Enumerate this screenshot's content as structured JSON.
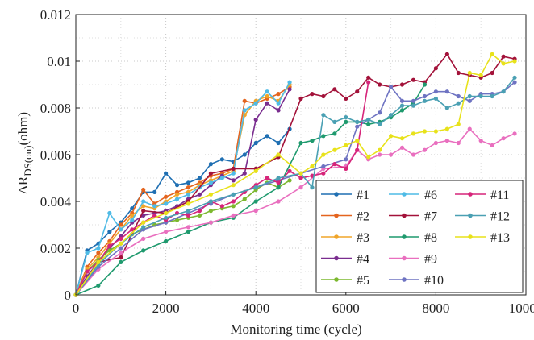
{
  "chart_data": {
    "type": "line",
    "xlabel": "Monitoring time (cycle)",
    "ylabel": {
      "main": "ΔR",
      "sub": "DS(on)",
      "unit": "(ohm)"
    },
    "xlim": [
      0,
      10000
    ],
    "ylim": [
      0,
      0.012
    ],
    "xticks": [
      "0",
      "2000",
      "4000",
      "6000",
      "8000",
      "10000"
    ],
    "yticks": [
      "0",
      "0.002",
      "0.004",
      "0.006",
      "0.008",
      "0.01",
      "0.012"
    ],
    "grid": true,
    "legend_position": "bottom-right",
    "series": [
      {
        "name": "#1",
        "color": "#1f6fb2",
        "x": [
          0,
          250,
          500,
          750,
          1000,
          1250,
          1500,
          1750,
          2000,
          2250,
          2500,
          2750,
          3000,
          3250,
          3500,
          3750,
          4000,
          4250,
          4500,
          4750
        ],
        "y": [
          0,
          0.0019,
          0.0022,
          0.0027,
          0.0031,
          0.0037,
          0.0044,
          0.0044,
          0.0052,
          0.0047,
          0.0048,
          0.005,
          0.0056,
          0.0058,
          0.0057,
          0.006,
          0.0065,
          0.0068,
          0.0065,
          0.0071
        ]
      },
      {
        "name": "#2",
        "color": "#e4641e",
        "x": [
          0,
          250,
          500,
          750,
          1000,
          1250,
          1500,
          1750,
          2000,
          2250,
          2500,
          2750,
          3000,
          3250,
          3500,
          3750,
          4000,
          4250,
          4500,
          4750
        ],
        "y": [
          0,
          0.0012,
          0.0018,
          0.0023,
          0.003,
          0.0035,
          0.0045,
          0.0039,
          0.0042,
          0.0044,
          0.0046,
          0.0048,
          0.0051,
          0.0052,
          0.0054,
          0.0083,
          0.0082,
          0.0084,
          0.0086,
          0.0089
        ]
      },
      {
        "name": "#3",
        "color": "#f0a52a",
        "x": [
          0,
          250,
          500,
          750,
          1000,
          1250,
          1500,
          1750,
          2000,
          2250,
          2500,
          2750,
          3000,
          3250,
          3500,
          3750,
          4000,
          4250,
          4500,
          4750
        ],
        "y": [
          0,
          0.0011,
          0.0016,
          0.0022,
          0.0028,
          0.0034,
          0.0038,
          0.0037,
          0.004,
          0.0043,
          0.0044,
          0.0047,
          0.0049,
          0.0051,
          0.0053,
          0.0077,
          0.0083,
          0.0085,
          0.0083,
          0.009
        ]
      },
      {
        "name": "#4",
        "color": "#7a2d8f",
        "x": [
          0,
          250,
          500,
          750,
          1000,
          1250,
          1500,
          1750,
          2000,
          2250,
          2500,
          2750,
          3000,
          3250,
          3500,
          3750,
          4000,
          4250,
          4500,
          4750
        ],
        "y": [
          0,
          0.0008,
          0.0014,
          0.002,
          0.0025,
          0.0031,
          0.0034,
          0.0035,
          0.0036,
          0.0038,
          0.0041,
          0.0043,
          0.0047,
          0.0051,
          0.0049,
          0.0052,
          0.0075,
          0.0082,
          0.0079,
          0.0088
        ]
      },
      {
        "name": "#5",
        "color": "#7cb82f",
        "x": [
          0,
          250,
          500,
          750,
          1000,
          1250,
          1500,
          1750,
          2000,
          2250,
          2500,
          2750,
          3000,
          3250,
          3500,
          3750,
          4000,
          4250,
          4500,
          4750
        ],
        "y": [
          0,
          0.001,
          0.0015,
          0.0019,
          0.0022,
          0.0026,
          0.0028,
          0.003,
          0.0031,
          0.0032,
          0.0033,
          0.0034,
          0.0036,
          0.0037,
          0.0038,
          0.0041,
          0.0045,
          0.0048,
          0.0046,
          0.0049
        ]
      },
      {
        "name": "#6",
        "color": "#4fbbe6",
        "x": [
          0,
          250,
          500,
          750,
          1000,
          1250,
          1500,
          1750,
          2000,
          2250,
          2500,
          2750,
          3000,
          3250,
          3500,
          3750,
          4000,
          4250,
          4500,
          4750
        ],
        "y": [
          0,
          0.0018,
          0.002,
          0.0035,
          0.0028,
          0.0032,
          0.004,
          0.0038,
          0.0039,
          0.0041,
          0.0043,
          0.0046,
          0.0048,
          0.005,
          0.0052,
          0.0079,
          0.0082,
          0.0087,
          0.0082,
          0.0091
        ]
      },
      {
        "name": "#7",
        "color": "#a3123a",
        "x": [
          0,
          500,
          1000,
          1500,
          2000,
          2500,
          3000,
          3500,
          4000,
          4500,
          5000,
          5250,
          5500,
          5750,
          6000,
          6250,
          6500,
          6750,
          7000,
          7250,
          7500,
          7750,
          8000,
          8250,
          8500,
          8750,
          9000,
          9250,
          9500,
          9750
        ],
        "y": [
          0,
          0.0014,
          0.0016,
          0.0036,
          0.0035,
          0.004,
          0.0052,
          0.0054,
          0.0054,
          0.0059,
          0.0084,
          0.0086,
          0.0085,
          0.0088,
          0.0084,
          0.0087,
          0.0093,
          0.009,
          0.0089,
          0.009,
          0.0092,
          0.0091,
          0.0097,
          0.0103,
          0.0095,
          0.0094,
          0.0093,
          0.0095,
          0.0102,
          0.0101
        ]
      },
      {
        "name": "#8",
        "color": "#1f9a6e",
        "x": [
          0,
          500,
          1000,
          1500,
          2000,
          2500,
          3000,
          3500,
          4000,
          4500,
          5000,
          5250,
          5500,
          5750,
          6000,
          6250,
          6500,
          6750,
          7000,
          7250,
          7500,
          7750
        ],
        "y": [
          0,
          0.0004,
          0.0014,
          0.0019,
          0.0023,
          0.0027,
          0.0031,
          0.0033,
          0.004,
          0.0046,
          0.0065,
          0.0066,
          0.0068,
          0.0069,
          0.0074,
          0.0074,
          0.0073,
          0.0074,
          0.0076,
          0.0079,
          0.0082,
          0.009
        ]
      },
      {
        "name": "#9",
        "color": "#e96fbf",
        "x": [
          0,
          500,
          1000,
          1500,
          2000,
          2500,
          3000,
          3500,
          4000,
          4500,
          5000,
          5500,
          6000,
          6250,
          6500,
          6750,
          7000,
          7250,
          7500,
          7750,
          8000,
          8250,
          8500,
          8750,
          9000,
          9250,
          9500,
          9750
        ],
        "y": [
          0,
          0.0011,
          0.0018,
          0.0024,
          0.0027,
          0.0029,
          0.0031,
          0.0034,
          0.0036,
          0.004,
          0.0046,
          0.0054,
          0.0055,
          0.0062,
          0.0058,
          0.006,
          0.006,
          0.0063,
          0.006,
          0.0062,
          0.0065,
          0.0066,
          0.0065,
          0.0071,
          0.0066,
          0.0064,
          0.0067,
          0.0069
        ]
      },
      {
        "name": "#10",
        "color": "#6e73c2",
        "x": [
          0,
          500,
          1000,
          1500,
          2000,
          2500,
          3000,
          3500,
          4000,
          4500,
          5000,
          5500,
          6000,
          6250,
          6500,
          6750,
          7000,
          7250,
          7500,
          7750,
          8000,
          8250,
          8500,
          8750,
          9000,
          9250,
          9500,
          9750
        ],
        "y": [
          0,
          0.0012,
          0.002,
          0.0028,
          0.0031,
          0.0035,
          0.0039,
          0.0043,
          0.0046,
          0.0049,
          0.0052,
          0.0055,
          0.0058,
          0.0072,
          0.0075,
          0.0078,
          0.0089,
          0.0083,
          0.0083,
          0.0085,
          0.0087,
          0.0087,
          0.0085,
          0.0083,
          0.0086,
          0.0086,
          0.0087,
          0.0091
        ]
      },
      {
        "name": "#11",
        "color": "#d6257a",
        "x": [
          0,
          250,
          500,
          750,
          1000,
          1250,
          1500,
          1750,
          2000,
          2250,
          2500,
          2750,
          3000,
          3250,
          3500,
          3750,
          4000,
          4250,
          4500,
          4750,
          5000,
          5250,
          5500,
          5750,
          6000,
          6250,
          6500
        ],
        "y": [
          0,
          0.001,
          0.0014,
          0.0021,
          0.0024,
          0.0028,
          0.0031,
          0.0034,
          0.0032,
          0.0035,
          0.0034,
          0.0036,
          0.004,
          0.0038,
          0.004,
          0.0044,
          0.0047,
          0.005,
          0.0048,
          0.0053,
          0.005,
          0.0051,
          0.0052,
          0.0056,
          0.0054,
          0.0062,
          0.0091
        ]
      },
      {
        "name": "#12",
        "color": "#4aa0b3",
        "x": [
          0,
          500,
          1000,
          1500,
          2000,
          2500,
          3000,
          3500,
          4000,
          4500,
          5000,
          5250,
          5500,
          5750,
          6000,
          6250,
          6500,
          6750,
          7000,
          7250,
          7500,
          7750,
          8000,
          8250,
          8500,
          8750,
          9000,
          9250,
          9500,
          9750
        ],
        "y": [
          0,
          0.0013,
          0.0022,
          0.0029,
          0.0033,
          0.0036,
          0.004,
          0.0043,
          0.0046,
          0.005,
          0.0052,
          0.0046,
          0.0077,
          0.0074,
          0.0076,
          0.0074,
          0.0075,
          0.0073,
          0.0077,
          0.0081,
          0.0081,
          0.0083,
          0.0084,
          0.008,
          0.0082,
          0.0085,
          0.0085,
          0.0085,
          0.0087,
          0.0093
        ]
      },
      {
        "name": "#13",
        "color": "#e8e21a",
        "x": [
          0,
          500,
          1000,
          1500,
          2000,
          2500,
          3000,
          3500,
          4000,
          4500,
          5000,
          5250,
          5500,
          5750,
          6000,
          6250,
          6500,
          6750,
          7000,
          7250,
          7500,
          7750,
          8000,
          8250,
          8500,
          8750,
          9000,
          9250,
          9500,
          9750
        ],
        "y": [
          0,
          0.0014,
          0.0022,
          0.0031,
          0.0035,
          0.0039,
          0.0043,
          0.0047,
          0.0053,
          0.006,
          0.0052,
          0.0055,
          0.006,
          0.0062,
          0.0064,
          0.0066,
          0.0059,
          0.0062,
          0.0068,
          0.0067,
          0.0069,
          0.007,
          0.007,
          0.0071,
          0.0073,
          0.0095,
          0.0094,
          0.0103,
          0.0099,
          0.01
        ]
      }
    ]
  }
}
